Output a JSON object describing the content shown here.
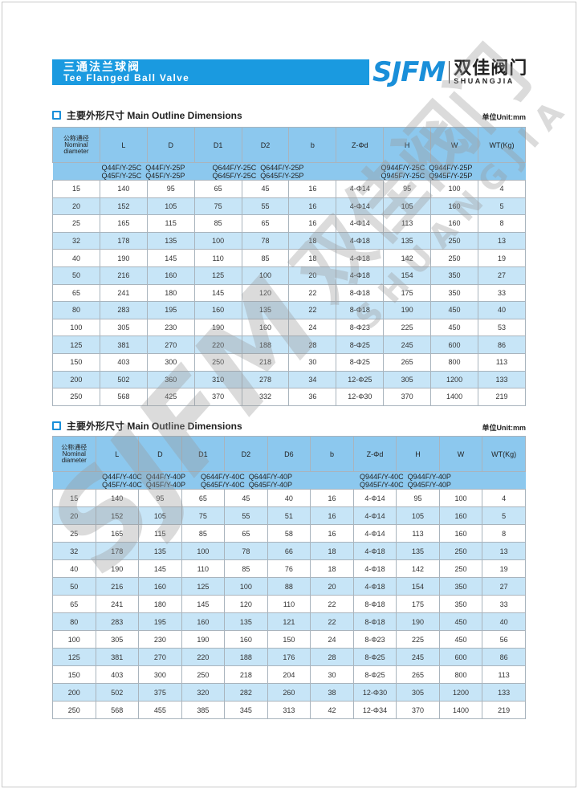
{
  "header": {
    "title_cn": "三通法兰球阀",
    "title_en": "Tee Flanged Ball Valve"
  },
  "logo": {
    "mark": "SJFM",
    "name_cn": "双佳阀门",
    "name_en": "SHUANGJIA"
  },
  "watermark": {
    "mark": "SJFM",
    "name_cn": "双佳阀门",
    "name_en": "SHUANGJIA"
  },
  "colors": {
    "accent": "#1a9ae0",
    "header_fill": "#8cc8ee",
    "stripe": "#c7e5f7"
  },
  "tables": [
    {
      "section_title": "主要外形尺寸 Main Outline  Dimensions",
      "unit": "单位Unit:mm",
      "headers": {
        "nominal_cn": "公称通径",
        "nominal_en1": "Nominal",
        "nominal_en2": "diameter",
        "cols": [
          "L",
          "D",
          "D1",
          "D2",
          "b",
          "Z-Φd",
          "H",
          "W",
          "WT(Kg)"
        ]
      },
      "models": [
        "Q44F/Y-25C",
        "Q44F/Y-25P",
        "Q45F/Y-25C",
        "Q45F/Y-25P",
        "Q644F/Y-25C",
        "Q644F/Y-25P",
        "Q645F/Y-25C",
        "Q645F/Y-25P",
        "Q944F/Y-25C",
        "Q944F/Y-25P",
        "Q945F/Y-25C",
        "Q945F/Y-25P"
      ],
      "rows": [
        [
          "15",
          "140",
          "95",
          "65",
          "45",
          "16",
          "4-Φ14",
          "95",
          "100",
          "4"
        ],
        [
          "20",
          "152",
          "105",
          "75",
          "55",
          "16",
          "4-Φ14",
          "105",
          "160",
          "5"
        ],
        [
          "25",
          "165",
          "115",
          "85",
          "65",
          "16",
          "4-Φ14",
          "113",
          "160",
          "8"
        ],
        [
          "32",
          "178",
          "135",
          "100",
          "78",
          "18",
          "4-Φ18",
          "135",
          "250",
          "13"
        ],
        [
          "40",
          "190",
          "145",
          "110",
          "85",
          "18",
          "4-Φ18",
          "142",
          "250",
          "19"
        ],
        [
          "50",
          "216",
          "160",
          "125",
          "100",
          "20",
          "4-Φ18",
          "154",
          "350",
          "27"
        ],
        [
          "65",
          "241",
          "180",
          "145",
          "120",
          "22",
          "8-Φ18",
          "175",
          "350",
          "33"
        ],
        [
          "80",
          "283",
          "195",
          "160",
          "135",
          "22",
          "8-Φ18",
          "190",
          "450",
          "40"
        ],
        [
          "100",
          "305",
          "230",
          "190",
          "160",
          "24",
          "8-Φ23",
          "225",
          "450",
          "53"
        ],
        [
          "125",
          "381",
          "270",
          "220",
          "188",
          "28",
          "8-Φ25",
          "245",
          "600",
          "86"
        ],
        [
          "150",
          "403",
          "300",
          "250",
          "218",
          "30",
          "8-Φ25",
          "265",
          "800",
          "113"
        ],
        [
          "200",
          "502",
          "360",
          "310",
          "278",
          "34",
          "12-Φ25",
          "305",
          "1200",
          "133"
        ],
        [
          "250",
          "568",
          "425",
          "370",
          "332",
          "36",
          "12-Φ30",
          "370",
          "1400",
          "219"
        ]
      ]
    },
    {
      "section_title": "主要外形尺寸 Main Outline  Dimensions",
      "unit": "单位Unit:mm",
      "headers": {
        "nominal_cn": "公称通径",
        "nominal_en1": "Nominal",
        "nominal_en2": "diameter",
        "cols": [
          "L",
          "D",
          "D1",
          "D2",
          "D6",
          "b",
          "Z-Φd",
          "H",
          "W",
          "WT(Kg)"
        ]
      },
      "models": [
        "Q44F/Y-40C",
        "Q44F/Y-40P",
        "Q45F/Y-40C",
        "Q45F/Y-40P",
        "Q644F/Y-40C",
        "Q644F/Y-40P",
        "Q645F/Y-40C",
        "Q645F/Y-40P",
        "Q944F/Y-40C",
        "Q944F/Y-40P",
        "Q945F/Y-40C",
        "Q945F/Y-40P"
      ],
      "rows": [
        [
          "15",
          "140",
          "95",
          "65",
          "45",
          "40",
          "16",
          "4-Φ14",
          "95",
          "100",
          "4"
        ],
        [
          "20",
          "152",
          "105",
          "75",
          "55",
          "51",
          "16",
          "4-Φ14",
          "105",
          "160",
          "5"
        ],
        [
          "25",
          "165",
          "115",
          "85",
          "65",
          "58",
          "16",
          "4-Φ14",
          "113",
          "160",
          "8"
        ],
        [
          "32",
          "178",
          "135",
          "100",
          "78",
          "66",
          "18",
          "4-Φ18",
          "135",
          "250",
          "13"
        ],
        [
          "40",
          "190",
          "145",
          "110",
          "85",
          "76",
          "18",
          "4-Φ18",
          "142",
          "250",
          "19"
        ],
        [
          "50",
          "216",
          "160",
          "125",
          "100",
          "88",
          "20",
          "4-Φ18",
          "154",
          "350",
          "27"
        ],
        [
          "65",
          "241",
          "180",
          "145",
          "120",
          "110",
          "22",
          "8-Φ18",
          "175",
          "350",
          "33"
        ],
        [
          "80",
          "283",
          "195",
          "160",
          "135",
          "121",
          "22",
          "8-Φ18",
          "190",
          "450",
          "40"
        ],
        [
          "100",
          "305",
          "230",
          "190",
          "160",
          "150",
          "24",
          "8-Φ23",
          "225",
          "450",
          "56"
        ],
        [
          "125",
          "381",
          "270",
          "220",
          "188",
          "176",
          "28",
          "8-Φ25",
          "245",
          "600",
          "86"
        ],
        [
          "150",
          "403",
          "300",
          "250",
          "218",
          "204",
          "30",
          "8-Φ25",
          "265",
          "800",
          "113"
        ],
        [
          "200",
          "502",
          "375",
          "320",
          "282",
          "260",
          "38",
          "12-Φ30",
          "305",
          "1200",
          "133"
        ],
        [
          "250",
          "568",
          "455",
          "385",
          "345",
          "313",
          "42",
          "12-Φ34",
          "370",
          "1400",
          "219"
        ]
      ]
    }
  ]
}
